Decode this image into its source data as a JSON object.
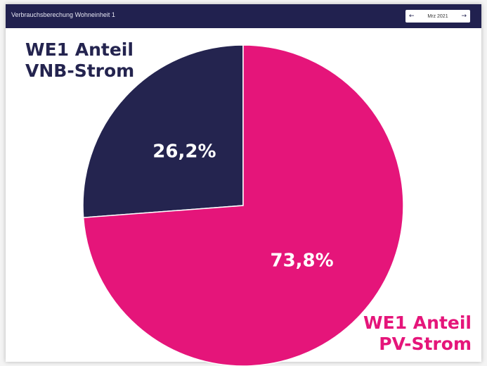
{
  "header": {
    "title": "Verbrauchsberechung Wohneinheit 1",
    "month": "Mrz 2021"
  },
  "colors": {
    "header_bg": "#21214f",
    "vnb": "#24244f",
    "pv": "#e5157a"
  },
  "icons": {
    "prev": "arrow-left-icon",
    "next": "arrow-right-icon"
  },
  "chart_data": {
    "type": "pie",
    "slices": [
      {
        "label_line1": "WE1 Anteil",
        "label_line2": "VNB-Strom",
        "value": 26.2,
        "value_label": "26,2%",
        "color": "#24244f"
      },
      {
        "label_line1": "WE1 Anteil",
        "label_line2": "PV-Strom",
        "value": 73.8,
        "value_label": "73,8%",
        "color": "#e5157a"
      }
    ]
  }
}
